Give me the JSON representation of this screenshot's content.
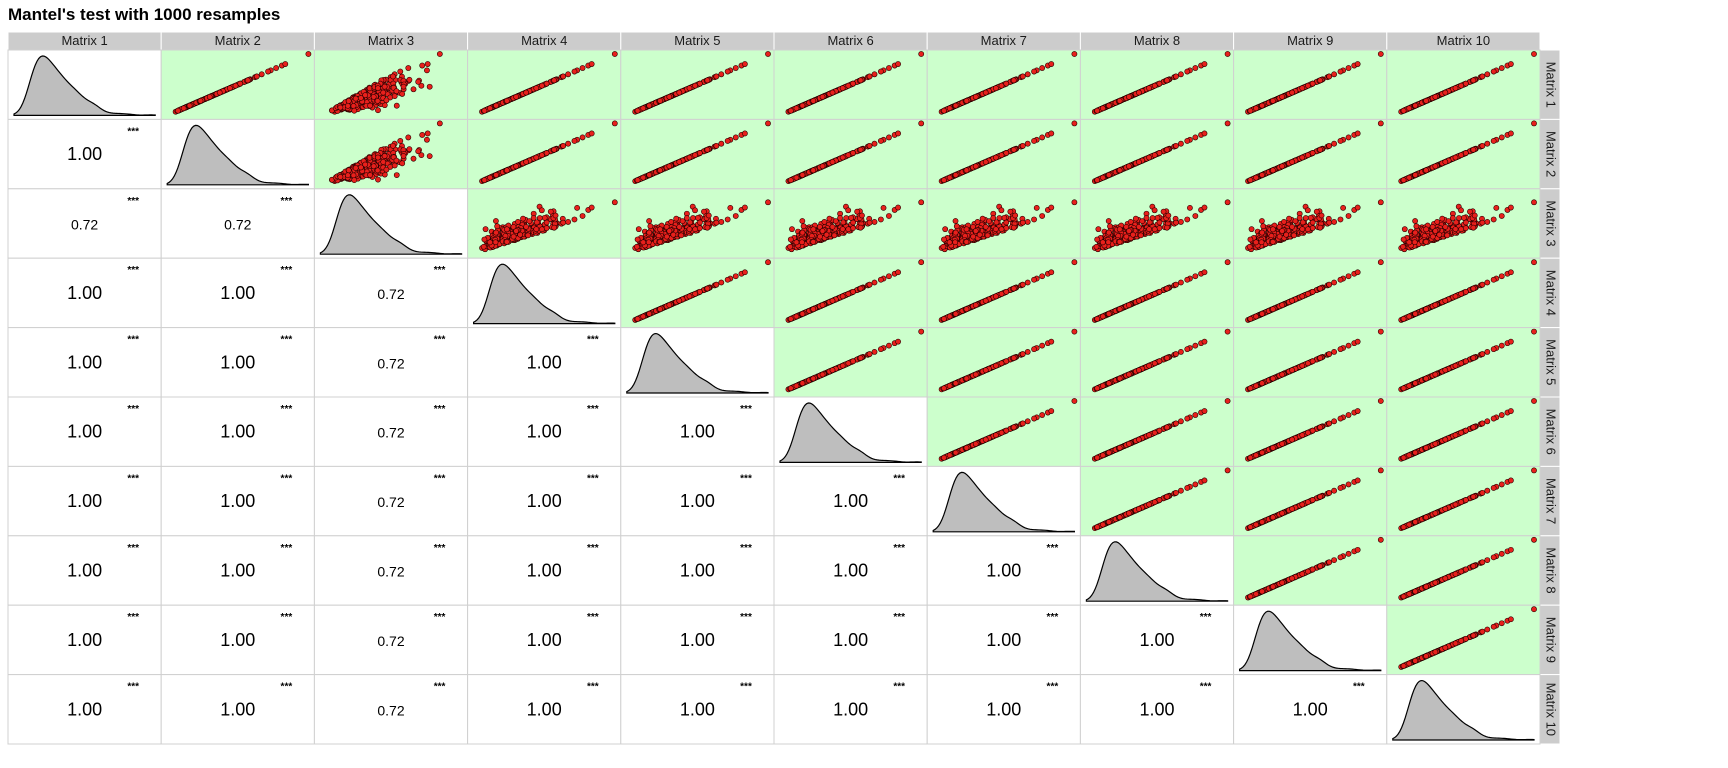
{
  "chart_data": {
    "type": "scatter",
    "title": "Mantel's test with 1000 resamples",
    "matrices": [
      "Matrix 1",
      "Matrix 2",
      "Matrix 3",
      "Matrix 4",
      "Matrix 5",
      "Matrix 6",
      "Matrix 7",
      "Matrix 8",
      "Matrix 9",
      "Matrix 10"
    ],
    "correlations": [
      [
        null,
        null,
        null,
        null,
        null,
        null,
        null,
        null,
        null,
        null
      ],
      [
        "1.00",
        null,
        null,
        null,
        null,
        null,
        null,
        null,
        null,
        null
      ],
      [
        "0.72",
        "0.72",
        null,
        null,
        null,
        null,
        null,
        null,
        null,
        null
      ],
      [
        "1.00",
        "1.00",
        "0.72",
        null,
        null,
        null,
        null,
        null,
        null,
        null
      ],
      [
        "1.00",
        "1.00",
        "0.72",
        "1.00",
        null,
        null,
        null,
        null,
        null,
        null
      ],
      [
        "1.00",
        "1.00",
        "0.72",
        "1.00",
        "1.00",
        null,
        null,
        null,
        null,
        null
      ],
      [
        "1.00",
        "1.00",
        "0.72",
        "1.00",
        "1.00",
        "1.00",
        null,
        null,
        null,
        null
      ],
      [
        "1.00",
        "1.00",
        "0.72",
        "1.00",
        "1.00",
        "1.00",
        "1.00",
        null,
        null,
        null
      ],
      [
        "1.00",
        "1.00",
        "0.72",
        "1.00",
        "1.00",
        "1.00",
        "1.00",
        "1.00",
        null,
        null
      ],
      [
        "1.00",
        "1.00",
        "0.72",
        "1.00",
        "1.00",
        "1.00",
        "1.00",
        "1.00",
        "1.00",
        null
      ]
    ],
    "significance": "***",
    "lower_panel": "correlation coefficient",
    "diagonal_panel": "density",
    "upper_panel": "scatter",
    "colors": {
      "strip_bg": "#cccccc",
      "upper_bg": "#ccffcc",
      "point_fill": "#e8201c",
      "point_stroke": "#2a0000",
      "density_fill": "#bebebe",
      "panel_border": "#d0d0d0"
    }
  }
}
